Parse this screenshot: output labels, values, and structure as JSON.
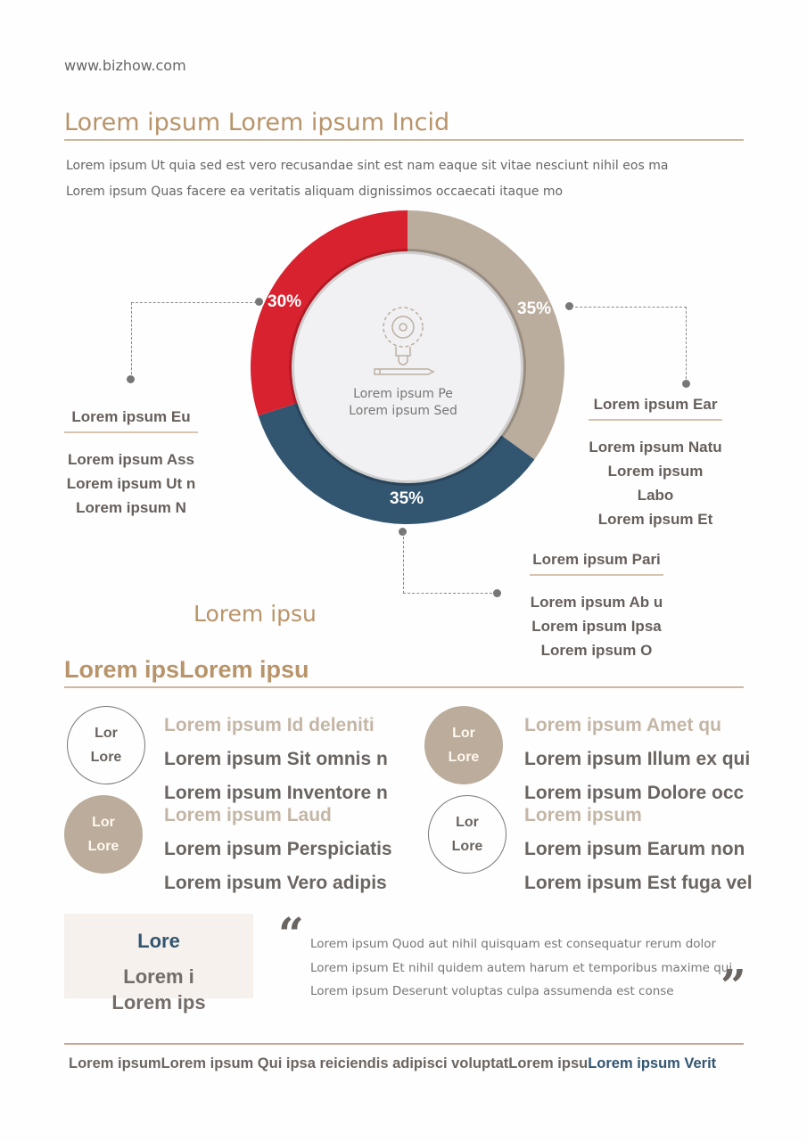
{
  "site": "www.bizhow.com",
  "title": "Lorem ipsum Lorem ipsum Incid",
  "intro": [
    "Lorem ipsum Ut quia sed est vero recusandae sint est nam eaque sit vitae nesciunt nihil eos ma",
    "Lorem ipsum Quas facere ea veritatis aliquam dignissimos occaecati itaque mo"
  ],
  "chart_data": {
    "type": "pie",
    "donut": true,
    "slices": [
      {
        "label": "35%",
        "value": 35,
        "color": "#bbad9e"
      },
      {
        "label": "35%",
        "value": 35,
        "color": "#325570"
      },
      {
        "label": "30%",
        "value": 30,
        "color": "#d9222f"
      }
    ],
    "center_icon": "lightbulb-gear-pencil-icon",
    "center_text": [
      "Lorem ipsum Pe",
      "Lorem ipsum Sed"
    ]
  },
  "callouts": {
    "left": {
      "heading": "Lorem ipsum Eu",
      "lines": [
        "Lorem ipsum Ass",
        "Lorem ipsum Ut n",
        "Lorem ipsum N"
      ]
    },
    "right": {
      "heading": "Lorem ipsum Ear",
      "lines": [
        "Lorem ipsum Natu",
        "Lorem ipsum Labo",
        "Lorem ipsum Et"
      ]
    },
    "bottom": {
      "heading": "Lorem ipsum Pari",
      "lines": [
        "Lorem ipsum Ab u",
        "Lorem ipsum Ipsa",
        "Lorem ipsum O"
      ]
    }
  },
  "subcaption": "Lorem ipsu",
  "section2_title": "Lorem ipsLorem ipsu",
  "groups": [
    {
      "circle": [
        "Lor",
        "Lore"
      ],
      "style": "outline",
      "items": [
        "Lorem ipsum Id deleniti",
        "Lorem ipsum Sit omnis n",
        "Lorem ipsum Inventore n"
      ]
    },
    {
      "circle": [
        "Lor",
        "Lore"
      ],
      "style": "filled",
      "items": [
        "Lorem ipsum Laud",
        "Lorem ipsum Perspiciatis",
        "Lorem ipsum Vero adipis"
      ]
    },
    {
      "circle": [
        "Lor",
        "Lore"
      ],
      "style": "filled",
      "items": [
        "Lorem ipsum Amet qu",
        "Lorem ipsum Illum ex qui",
        "Lorem ipsum Dolore occ"
      ]
    },
    {
      "circle": [
        "Lor",
        "Lore"
      ],
      "style": "outline",
      "items": [
        "Lorem ipsum",
        "Lorem ipsum Earum non",
        "Lorem ipsum Est fuga vel"
      ]
    }
  ],
  "box": {
    "title": "Lore",
    "lines": [
      "Lorem i",
      "Lorem ips"
    ]
  },
  "quote": {
    "open": "“",
    "close": "”",
    "lines": [
      "Lorem ipsum Quod aut nihil quisquam est consequatur rerum dolor",
      "Lorem ipsum Et nihil quidem autem harum et temporibus maxime qui",
      "Lorem ipsum Deserunt voluptas culpa assumenda est conse"
    ]
  },
  "footer": {
    "main": "Lorem ipsumLorem ipsum Qui ipsa reiciendis adipisci voluptatLorem ipsu",
    "accent": "Lorem ipsum Verit"
  }
}
